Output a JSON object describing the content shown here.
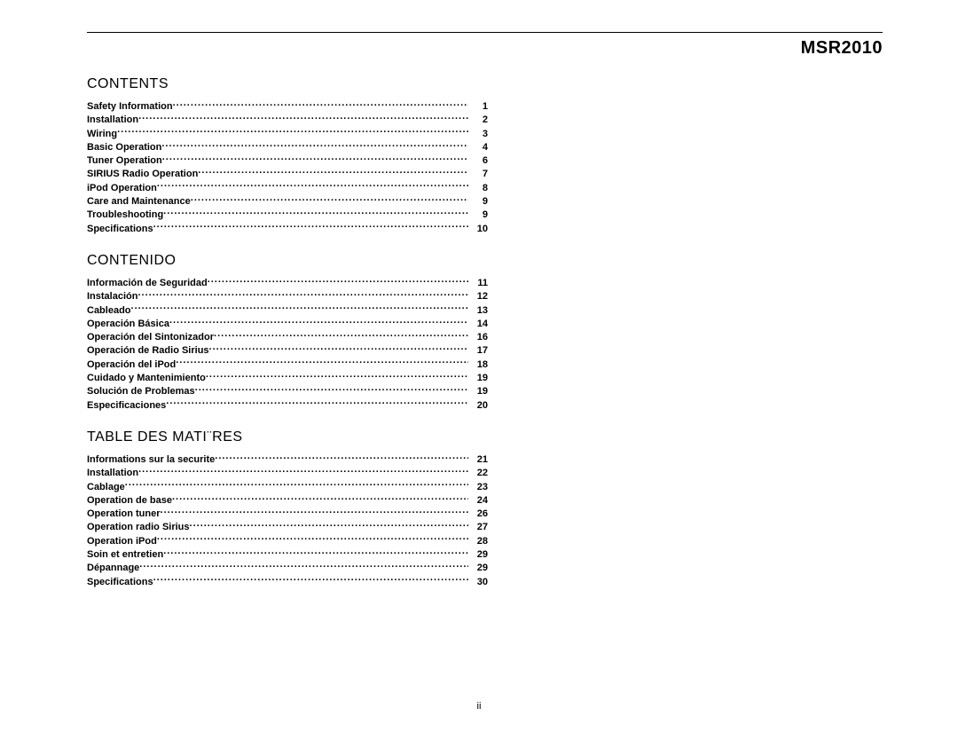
{
  "header": {
    "model": "MSR2010"
  },
  "sections": [
    {
      "title": "CONTENTS",
      "items": [
        {
          "label": "Safety Information",
          "page": "1"
        },
        {
          "label": "Installation",
          "page": "2"
        },
        {
          "label": "Wiring",
          "page": "3"
        },
        {
          "label": "Basic Operation",
          "page": "4"
        },
        {
          "label": "Tuner Operation",
          "page": "6"
        },
        {
          "label": "SIRIUS Radio Operation",
          "page": "7"
        },
        {
          "label": "iPod Operation",
          "page": "8"
        },
        {
          "label": "Care and Maintenance",
          "page": "9"
        },
        {
          "label": "Troubleshooting",
          "page": "9"
        },
        {
          "label": "Specifications",
          "page": "10"
        }
      ]
    },
    {
      "title": "CONTENIDO",
      "items": [
        {
          "label": "Información de Seguridad",
          "page": "11"
        },
        {
          "label": "Instalación",
          "page": "12"
        },
        {
          "label": "Cableado",
          "page": "13"
        },
        {
          "label": "Operación Básica",
          "page": "14"
        },
        {
          "label": "Operación del Sintonizador",
          "page": "16"
        },
        {
          "label": "Operación de Radio Sirius",
          "page": "17"
        },
        {
          "label": "Operación del iPod",
          "page": "18"
        },
        {
          "label": "Cuidado y Mantenimiento",
          "page": "19"
        },
        {
          "label": "Solución de Problemas",
          "page": "19"
        },
        {
          "label": "Especificaciones",
          "page": "20"
        }
      ]
    },
    {
      "title": "TABLE DES MATI¨RES",
      "items": [
        {
          "label": "Informations sur la securite",
          "page": "21"
        },
        {
          "label": "Installation",
          "page": "22"
        },
        {
          "label": "Cablage",
          "page": "23"
        },
        {
          "label": "Operation de base",
          "page": "24"
        },
        {
          "label": "Operation tuner",
          "page": "26"
        },
        {
          "label": "Operation radio Sirius",
          "page": "27"
        },
        {
          "label": "Operation iPod",
          "page": "28"
        },
        {
          "label": "Soin et entretien",
          "page": "29"
        },
        {
          "label": "Dépannage",
          "page": "29"
        },
        {
          "label": "Specifications",
          "page": "30"
        }
      ]
    }
  ],
  "footer": {
    "page_number": "ii"
  }
}
